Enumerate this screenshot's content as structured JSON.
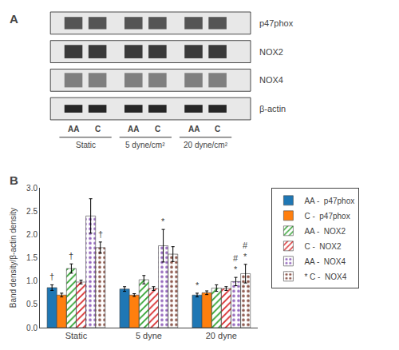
{
  "chart_data": [
    {
      "type": "blot",
      "title": "A",
      "rows": [
        "p47phox",
        "NOX2",
        "NOX4",
        "β-actin"
      ],
      "categories": [
        "AA",
        "C",
        "AA",
        "C",
        "AA",
        "C"
      ],
      "groups": [
        "Static",
        "5 dyne/cm²",
        "20 dyne/cm²"
      ]
    },
    {
      "type": "bar",
      "title": "B",
      "categories": [
        "Static",
        "5 dyne",
        "20 dyne"
      ],
      "ylabel": "Band density/β-actin density",
      "series": [
        {
          "name": "AA -  p47phox",
          "values": [
            0.86,
            0.83,
            0.7
          ],
          "errors": [
            0.06,
            0.05,
            0.04
          ]
        },
        {
          "name": "C -  p47phox",
          "values": [
            0.7,
            0.7,
            0.75
          ],
          "errors": [
            0.04,
            0.03,
            0.04
          ]
        },
        {
          "name": "AA -  NOX2",
          "values": [
            1.27,
            1.03,
            0.85
          ],
          "errors": [
            0.1,
            0.09,
            0.07
          ],
          "marker": "hatched"
        },
        {
          "name": "C -  NOX2",
          "values": [
            0.98,
            0.84,
            0.84
          ],
          "errors": [
            0.04,
            0.04,
            0.04
          ],
          "marker": "hatched"
        },
        {
          "name": "AA -  NOX4",
          "values": [
            2.4,
            1.76,
            0.99
          ],
          "errors": [
            0.37,
            0.35,
            0.09
          ],
          "marker": "dotted"
        },
        {
          "name": "* C -  NOX4",
          "values": [
            1.72,
            1.58,
            1.16
          ],
          "errors": [
            0.12,
            0.16,
            0.2
          ],
          "marker": "dotted"
        }
      ],
      "annotations": [
        {
          "category": "Static",
          "series": "AA -  p47phox",
          "text": "†"
        },
        {
          "category": "Static",
          "series": "AA -  NOX2",
          "text": "†"
        },
        {
          "category": "Static",
          "series": "* C -  NOX4",
          "text": "†"
        },
        {
          "category": "5 dyne",
          "series": "AA -  NOX4",
          "text": "*"
        },
        {
          "category": "20 dyne",
          "series": "AA -  p47phox",
          "text": "*"
        },
        {
          "category": "20 dyne",
          "series": "AA -  NOX4",
          "text": "#\n*"
        },
        {
          "category": "20 dyne",
          "series": "* C -  NOX4",
          "text": "#\n*"
        }
      ],
      "ylim": [
        0,
        3.0
      ],
      "yticks": [
        {
          "value": 0,
          "label": "0.0"
        },
        0.5,
        {
          "value": 1.0,
          "label": "1.0"
        },
        1.5,
        {
          "value": 2.0,
          "label": "2.0"
        },
        2.5,
        {
          "value": 3.0,
          "label": "3.0"
        }
      ],
      "grid": false,
      "legend": "upper right"
    }
  ]
}
